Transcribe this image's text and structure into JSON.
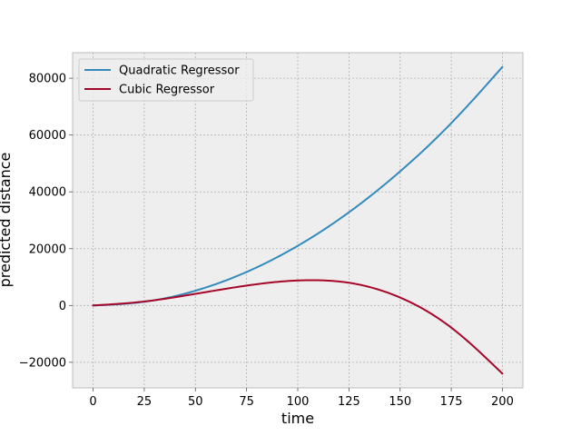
{
  "chart_data": {
    "type": "line",
    "title": "",
    "xlabel": "time",
    "ylabel": "predicted distance",
    "xlim": [
      -10,
      210
    ],
    "ylim": [
      -29000,
      89000
    ],
    "xticks": [
      0,
      25,
      50,
      75,
      100,
      125,
      150,
      175,
      200
    ],
    "yticks": [
      -20000,
      0,
      20000,
      40000,
      60000,
      80000
    ],
    "xtick_labels": [
      "0",
      "25",
      "50",
      "75",
      "100",
      "125",
      "150",
      "175",
      "200"
    ],
    "ytick_labels": [
      "−20000",
      "0",
      "20000",
      "40000",
      "60000",
      "80000"
    ],
    "grid": true,
    "grid_style": "dotted",
    "background_color": "#eeeeee",
    "legend_position": "upper-left",
    "series": [
      {
        "name": "Quadratic Regressor",
        "color": "#348abd",
        "x": [
          0,
          25,
          50,
          75,
          100,
          125,
          150,
          175,
          200
        ],
        "y": [
          0,
          1300,
          5200,
          11800,
          21000,
          32800,
          47200,
          64200,
          84000
        ]
      },
      {
        "name": "Cubic Regressor",
        "color": "#a60628",
        "x": [
          0,
          25,
          50,
          75,
          100,
          106,
          125,
          150,
          175,
          200
        ],
        "y": [
          0,
          1400,
          4100,
          7000,
          8800,
          8900,
          8000,
          2800,
          -7800,
          -24000
        ]
      }
    ]
  }
}
